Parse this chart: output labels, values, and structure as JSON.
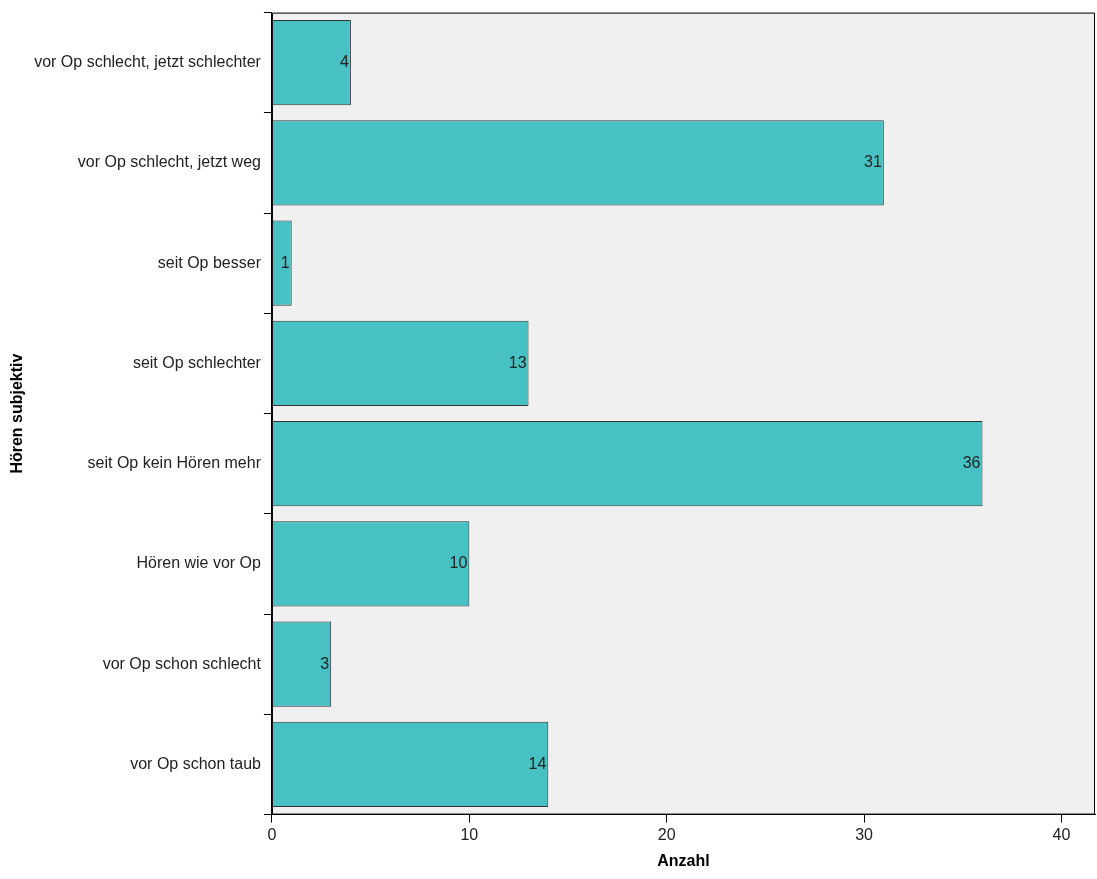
{
  "chart_data": {
    "type": "bar",
    "orientation": "horizontal",
    "xlabel": "Anzahl",
    "ylabel": "Hören subjektiv",
    "categories": [
      "vor Op schlecht, jetzt schlechter",
      "vor Op schlecht, jetzt weg",
      "seit Op besser",
      "seit Op schlechter",
      "seit Op kein Hören mehr",
      "Hören wie vor Op",
      "vor Op schon schlecht",
      "vor Op schon taub"
    ],
    "values": [
      4,
      31,
      1,
      13,
      36,
      10,
      3,
      14
    ],
    "color": "#48c1c4",
    "xlim": [
      0,
      41.7
    ],
    "xticks": [
      0,
      10,
      20,
      30,
      40
    ],
    "data_labels": true,
    "grid": false,
    "legend": false
  }
}
